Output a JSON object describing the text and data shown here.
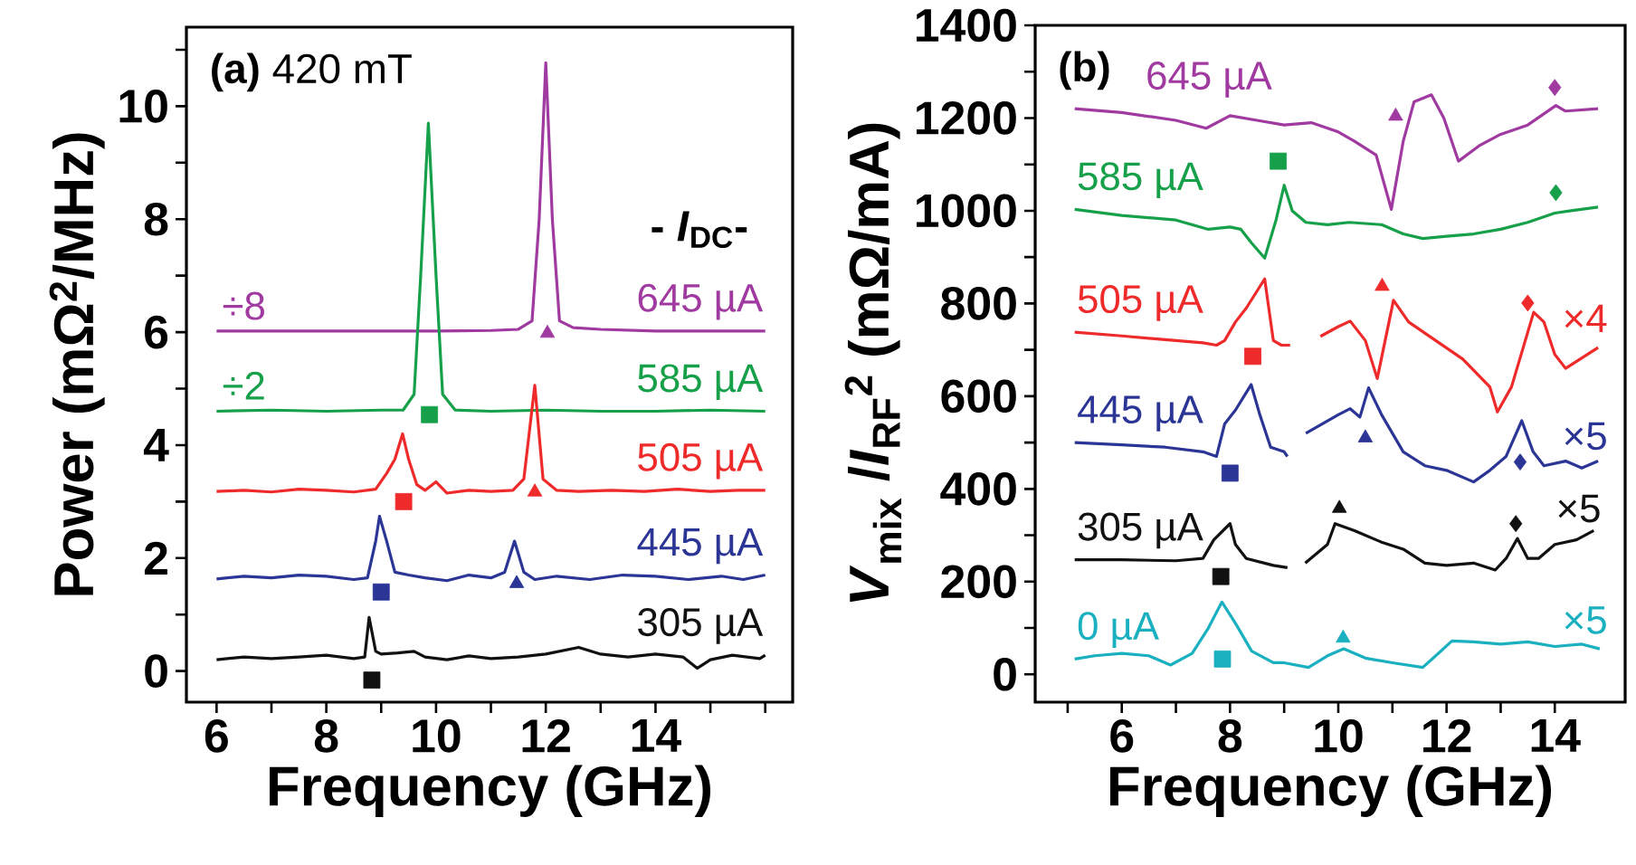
{
  "chart_data": [
    {
      "type": "line",
      "title": "**(a)** 420 mT",
      "xlabel": "Frequency (GHz)",
      "ylabel": "Power (mΩ$^{2}$/MHz)",
      "legend_title": "- *I*$_{DC}$-",
      "xlim": [
        5.45,
        16.5
      ],
      "ylim": [
        -0.55,
        11.4
      ],
      "xticks": [
        6,
        {
          "value": 7,
          "label": null
        },
        8,
        {
          "value": 9,
          "label": null
        },
        10,
        {
          "value": 11,
          "label": null
        },
        12,
        {
          "value": 13,
          "label": null
        },
        14,
        {
          "value": 15,
          "label": null
        },
        {
          "value": 16,
          "label": null
        }
      ],
      "yticks": [
        0,
        {
          "value": 1,
          "label": null
        },
        2,
        {
          "value": 3,
          "label": null
        },
        4,
        {
          "value": 5,
          "label": null
        },
        6,
        {
          "value": 7,
          "label": null
        },
        8,
        {
          "value": 9,
          "label": null
        },
        10,
        {
          "value": 11,
          "label": null
        }
      ],
      "annotations": [
        "÷8",
        "÷2"
      ],
      "series": [
        {
          "name": "645 µA",
          "color": "#a03aa0",
          "x": [
            6,
            8,
            10,
            11,
            11.5,
            11.75,
            11.88,
            12.0,
            12.12,
            12.25,
            12.5,
            13,
            14,
            16
          ],
          "values": [
            6.02,
            6.02,
            6.02,
            6.03,
            6.05,
            6.2,
            8.0,
            10.77,
            8.0,
            6.2,
            6.08,
            6.05,
            6.02,
            6.02
          ]
        },
        {
          "name": "585 µA",
          "color": "#17a04a",
          "x": [
            6,
            7,
            8,
            9,
            9.4,
            9.6,
            9.72,
            9.86,
            10.0,
            10.12,
            10.35,
            11,
            12,
            13,
            14,
            15,
            16
          ],
          "values": [
            4.6,
            4.62,
            4.6,
            4.62,
            4.62,
            4.9,
            7.0,
            9.7,
            7.0,
            4.9,
            4.62,
            4.6,
            4.62,
            4.6,
            4.6,
            4.62,
            4.6
          ]
        },
        {
          "name": "505 µA",
          "color": "#ee2a2a",
          "x": [
            6,
            6.5,
            7,
            7.5,
            8.0,
            8.5,
            8.9,
            9.1,
            9.25,
            9.39,
            9.5,
            9.65,
            9.8,
            10.0,
            10.2,
            10.6,
            11.0,
            11.4,
            11.6,
            11.8,
            11.95,
            12.2,
            12.6,
            13.2,
            13.8,
            14.4,
            15.0,
            15.5,
            16.0
          ],
          "values": [
            3.18,
            3.2,
            3.17,
            3.22,
            3.2,
            3.17,
            3.22,
            3.5,
            3.75,
            4.2,
            3.75,
            3.3,
            3.2,
            3.35,
            3.15,
            3.2,
            3.18,
            3.2,
            3.4,
            5.06,
            3.4,
            3.2,
            3.18,
            3.2,
            3.18,
            3.22,
            3.18,
            3.2,
            3.2
          ]
        },
        {
          "name": "445 µA",
          "color": "#2b3595",
          "x": [
            6,
            6.5,
            7,
            7.5,
            8.0,
            8.5,
            8.75,
            8.9,
            8.97,
            9.1,
            9.25,
            9.5,
            9.8,
            10.2,
            10.6,
            11.0,
            11.25,
            11.43,
            11.6,
            11.8,
            12.2,
            12.8,
            13.4,
            14.0,
            14.6,
            15.2,
            15.6,
            16.0
          ],
          "values": [
            1.63,
            1.68,
            1.65,
            1.7,
            1.68,
            1.62,
            1.65,
            2.3,
            2.74,
            2.3,
            1.75,
            1.7,
            1.65,
            1.6,
            1.7,
            1.65,
            1.75,
            2.3,
            1.75,
            1.62,
            1.68,
            1.62,
            1.7,
            1.68,
            1.62,
            1.68,
            1.62,
            1.7
          ]
        },
        {
          "name": "305 µA",
          "color": "#111111",
          "x": [
            6.0,
            6.5,
            7.0,
            7.5,
            8.0,
            8.5,
            8.7,
            8.78,
            8.9,
            9.0,
            9.3,
            9.6,
            9.8,
            10.2,
            10.6,
            11.0,
            11.5,
            12.0,
            12.6,
            13.0,
            13.5,
            14.0,
            14.5,
            14.76,
            15.0,
            15.4,
            15.9,
            16.0
          ],
          "values": [
            0.2,
            0.25,
            0.22,
            0.25,
            0.28,
            0.22,
            0.25,
            0.95,
            0.35,
            0.3,
            0.32,
            0.35,
            0.25,
            0.2,
            0.27,
            0.22,
            0.25,
            0.3,
            0.42,
            0.3,
            0.25,
            0.3,
            0.25,
            0.05,
            0.2,
            0.28,
            0.22,
            0.28
          ]
        },
        {
          "type": "scatter",
          "marker": "square",
          "x": [
            8.83,
            9.0,
            9.41,
            9.88
          ],
          "values": [
            -0.16,
            1.4,
            3.0,
            4.54
          ],
          "colors": [
            "#111111",
            "#2b3595",
            "#ee2a2a",
            "#17a04a"
          ]
        },
        {
          "type": "scatter",
          "marker": "triangle",
          "x": [
            11.47,
            11.8,
            12.03
          ],
          "values": [
            1.55,
            3.17,
            5.98
          ],
          "colors": [
            "#2b3595",
            "#ee2a2a",
            "#a03aa0"
          ]
        }
      ]
    },
    {
      "type": "line",
      "title": "**(b)**",
      "xlabel": "Frequency (GHz)",
      "ylabel": "*V*$_{mix}$ /*I*$_{RF}$$^{2}$ (mΩ/mA)",
      "xlim": [
        4.4,
        15.3
      ],
      "ylim": [
        -60,
        1400
      ],
      "xticks": [
        {
          "value": 5,
          "label": null
        },
        6,
        {
          "value": 7,
          "label": null
        },
        8,
        {
          "value": 9,
          "label": null
        },
        10,
        {
          "value": 11,
          "label": null
        },
        12,
        {
          "value": 13,
          "label": null
        },
        14
      ],
      "yticks": [
        0,
        {
          "value": 100,
          "label": null
        },
        200,
        {
          "value": 300,
          "label": null
        },
        400,
        {
          "value": 500,
          "label": null
        },
        600,
        {
          "value": 700,
          "label": null
        },
        800,
        {
          "value": 900,
          "label": null
        },
        1000,
        {
          "value": 1100,
          "label": null
        },
        1200,
        {
          "value": 1300,
          "label": null
        },
        1400
      ],
      "annotations": [
        "×4",
        "×5",
        "×5",
        "×5"
      ],
      "series": [
        {
          "name": "645 µA",
          "color": "#a03aa0",
          "x": [
            5.13,
            6.0,
            7.0,
            7.56,
            8.0,
            8.5,
            9.0,
            9.5,
            10.0,
            10.3,
            10.7,
            10.98,
            11.2,
            11.4,
            11.72,
            11.95,
            12.22,
            12.6,
            13.0,
            13.5,
            14.02,
            14.2,
            14.8
          ],
          "values": [
            1220,
            1212,
            1195,
            1178,
            1205,
            1195,
            1185,
            1190,
            1170,
            1150,
            1120,
            1003,
            1150,
            1235,
            1250,
            1200,
            1107,
            1140,
            1165,
            1185,
            1227,
            1215,
            1220
          ]
        },
        {
          "name": "585 µA",
          "color": "#17a04a",
          "x": [
            5.13,
            6.0,
            7.0,
            7.6,
            8.0,
            8.2,
            8.4,
            8.64,
            8.85,
            9.0,
            9.15,
            9.4,
            9.8,
            10.2,
            10.8,
            11.2,
            11.56,
            12.0,
            12.5,
            13.0,
            13.5,
            14.0,
            14.3,
            14.8
          ],
          "values": [
            1003,
            990,
            980,
            960,
            965,
            960,
            930,
            898,
            980,
            1055,
            1000,
            975,
            970,
            975,
            970,
            950,
            940,
            945,
            950,
            960,
            975,
            995,
            1000,
            1008
          ]
        },
        {
          "name": "505 µA",
          "color": "#ee2a2a",
          "x": [
            5.13,
            6.0,
            7.0,
            7.5,
            7.75,
            7.9,
            8.1,
            8.3,
            8.64,
            8.8,
            8.95,
            9.11,
            9.4,
            9.67,
            10.0,
            10.22,
            10.5,
            10.72,
            11.02,
            11.3,
            11.8,
            12.3,
            12.8,
            12.94,
            13.2,
            13.61,
            13.8,
            14.0,
            14.2,
            14.8
          ],
          "values": [
            738,
            730,
            720,
            715,
            710,
            720,
            760,
            790,
            853,
            720,
            710,
            710,
            null,
            729,
            750,
            762,
            720,
            638,
            807,
            760,
            720,
            680,
            620,
            566,
            620,
            781,
            760,
            690,
            660,
            705
          ]
        },
        {
          "name": "445 µA",
          "color": "#2b3595",
          "x": [
            5.13,
            6.0,
            6.8,
            7.5,
            7.75,
            7.9,
            8.1,
            8.39,
            8.55,
            8.75,
            9.0,
            9.06,
            9.2,
            9.4,
            9.7,
            10.0,
            10.22,
            10.4,
            10.56,
            10.8,
            11.2,
            11.6,
            12.0,
            12.5,
            12.8,
            13.1,
            13.39,
            13.6,
            13.8,
            14.2,
            14.5,
            14.8
          ],
          "values": [
            500,
            495,
            490,
            480,
            470,
            540,
            570,
            625,
            560,
            490,
            480,
            470,
            null,
            520,
            540,
            560,
            573,
            555,
            618,
            560,
            480,
            450,
            440,
            415,
            440,
            470,
            547,
            480,
            450,
            460,
            445,
            460
          ]
        },
        {
          "name": "305 µA",
          "color": "#111111",
          "x": [
            5.13,
            6.0,
            7.0,
            7.5,
            7.7,
            8.0,
            8.1,
            8.3,
            8.8,
            9.06,
            9.2,
            9.39,
            9.8,
            9.94,
            10.3,
            10.8,
            11.2,
            11.6,
            12.0,
            12.5,
            12.9,
            13.1,
            13.31,
            13.5,
            13.7,
            14.0,
            14.4,
            14.72
          ],
          "values": [
            247,
            247,
            245,
            250,
            290,
            325,
            280,
            250,
            235,
            230,
            null,
            240,
            280,
            325,
            310,
            285,
            270,
            240,
            235,
            240,
            225,
            250,
            293,
            250,
            250,
            280,
            290,
            310
          ]
        },
        {
          "name": "0 µA",
          "color": "#1ab0c0",
          "x": [
            5.13,
            5.5,
            6.0,
            6.5,
            6.9,
            7.3,
            7.6,
            7.85,
            8.1,
            8.4,
            8.8,
            9.0,
            9.45,
            9.8,
            10.1,
            10.5,
            11.0,
            11.56,
            11.8,
            12.1,
            12.5,
            13.0,
            13.5,
            14.0,
            14.5,
            14.83
          ],
          "values": [
            33,
            40,
            45,
            40,
            20,
            45,
            100,
            156,
            110,
            50,
            25,
            25,
            15,
            40,
            55,
            35,
            25,
            15,
            40,
            72,
            70,
            65,
            70,
            60,
            65,
            55
          ]
        },
        {
          "type": "scatter",
          "marker": "square",
          "x": [
            8.89,
            8.42,
            8.0,
            7.83,
            7.86
          ],
          "values": [
            1107,
            686,
            434,
            211,
            33
          ],
          "colors": [
            "#17a04a",
            "#ee2a2a",
            "#2b3595",
            "#111111",
            "#1ab0c0"
          ]
        },
        {
          "type": "scatter",
          "marker": "triangle",
          "x": [
            11.06,
            10.81,
            10.5,
            10.02,
            10.09
          ],
          "values": [
            1204,
            837,
            510,
            358,
            78
          ],
          "colors": [
            "#a03aa0",
            "#ee2a2a",
            "#2b3595",
            "#111111",
            "#1ab0c0"
          ]
        },
        {
          "type": "scatter",
          "marker": "diamond",
          "x": [
            14.0,
            14.02,
            13.5,
            13.36,
            13.28
          ],
          "values": [
            1266,
            1039,
            801,
            458,
            325
          ],
          "colors": [
            "#a03aa0",
            "#17a04a",
            "#ee2a2a",
            "#2b3595",
            "#111111"
          ]
        }
      ]
    }
  ]
}
